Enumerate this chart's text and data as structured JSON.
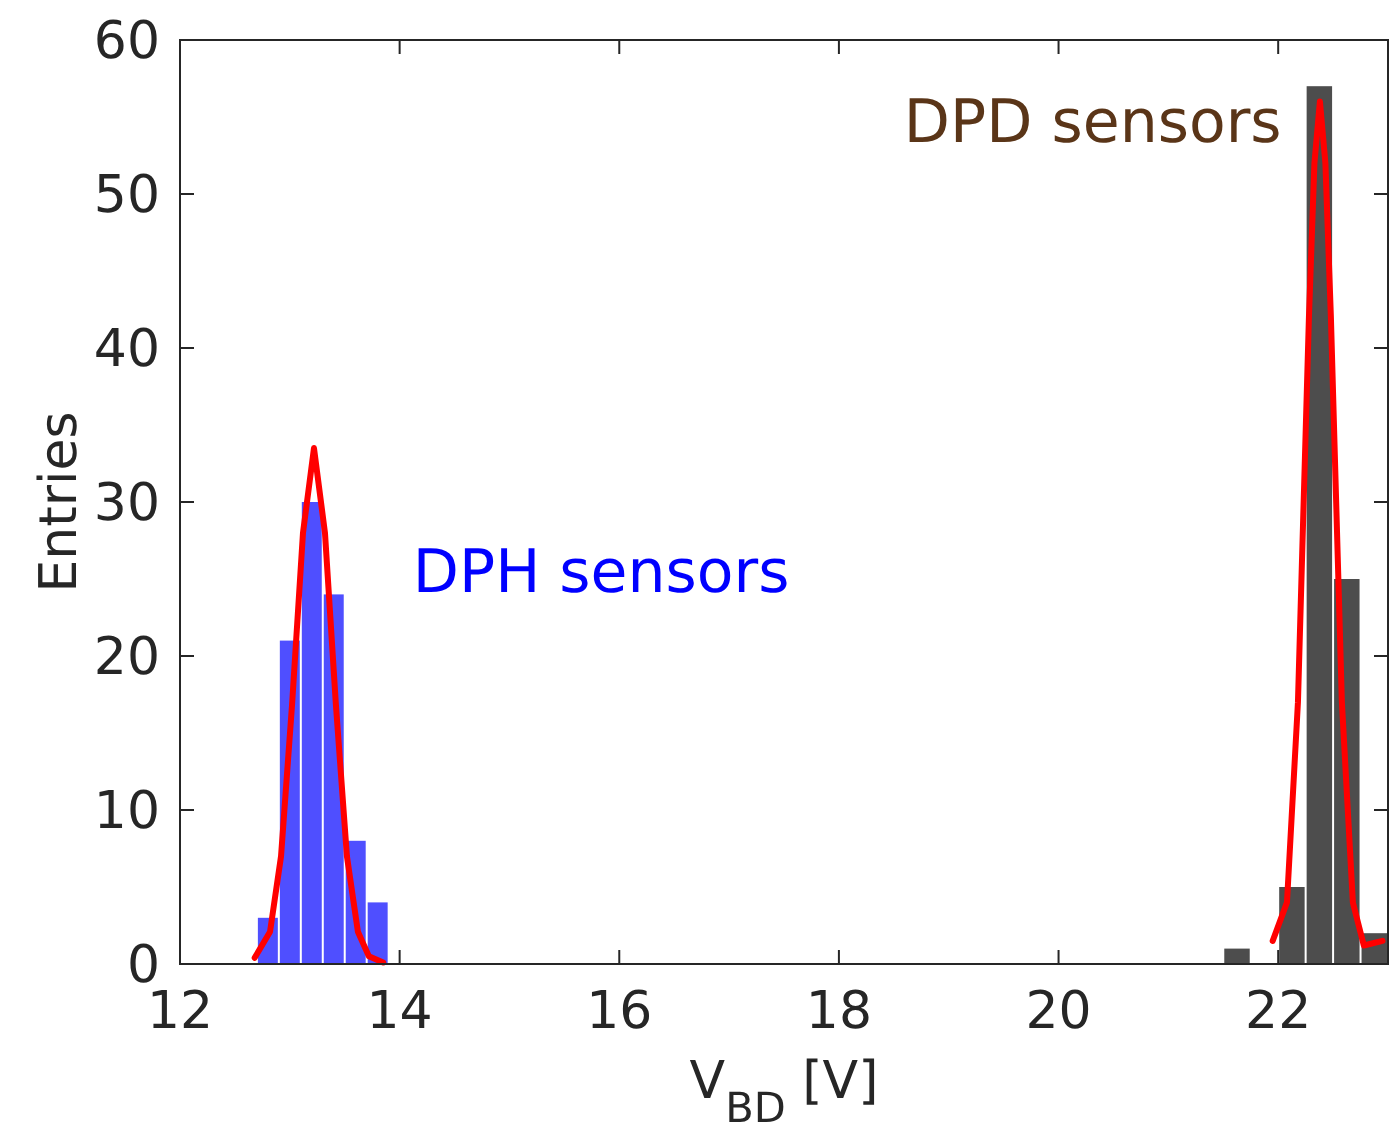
{
  "chart_data": {
    "type": "histogram",
    "xlabel": "V$_{BD}$ [V]",
    "ylabel": "Entries",
    "xlim": [
      12,
      23
    ],
    "xticks": [
      12,
      14,
      16,
      18,
      20,
      22
    ],
    "ylim": [
      0,
      60
    ],
    "yticks": [
      0,
      10,
      20,
      30,
      40,
      50,
      60
    ],
    "grid": false,
    "series": [
      {
        "name": "DPH sensors",
        "color": "#4f4fff",
        "bins": [
          12.7,
          12.9,
          13.1,
          13.3,
          13.5,
          13.7,
          13.9
        ],
        "values": [
          3,
          21,
          30,
          24,
          8,
          4
        ]
      },
      {
        "name": "DPD sensors",
        "color": "#4d4d4d",
        "bins": [
          21.5,
          21.75,
          22,
          22.25,
          22.5,
          22.75,
          23
        ],
        "values": [
          1,
          0,
          5,
          57,
          25,
          2
        ]
      },
      {
        "type": "line",
        "color": "#ff0000",
        "x": [
          12.68,
          12.82,
          12.92,
          13.02,
          13.12,
          13.22,
          13.32,
          13.42,
          13.52,
          13.62,
          13.72,
          13.85
        ],
        "values": [
          0.4,
          2.1,
          7,
          16.8,
          28,
          33.5,
          28,
          16.8,
          7,
          2.1,
          0.5,
          0.1
        ]
      },
      {
        "type": "line",
        "color": "#ff0000",
        "x": [
          21.95,
          22.08,
          22.18,
          22.28,
          22.33,
          22.38,
          22.43,
          22.48,
          22.58,
          22.68,
          22.78,
          22.95
        ],
        "values": [
          1.5,
          4,
          17,
          42,
          52,
          56,
          52,
          42,
          17,
          4,
          1.2,
          1.5
        ]
      }
    ]
  }
}
